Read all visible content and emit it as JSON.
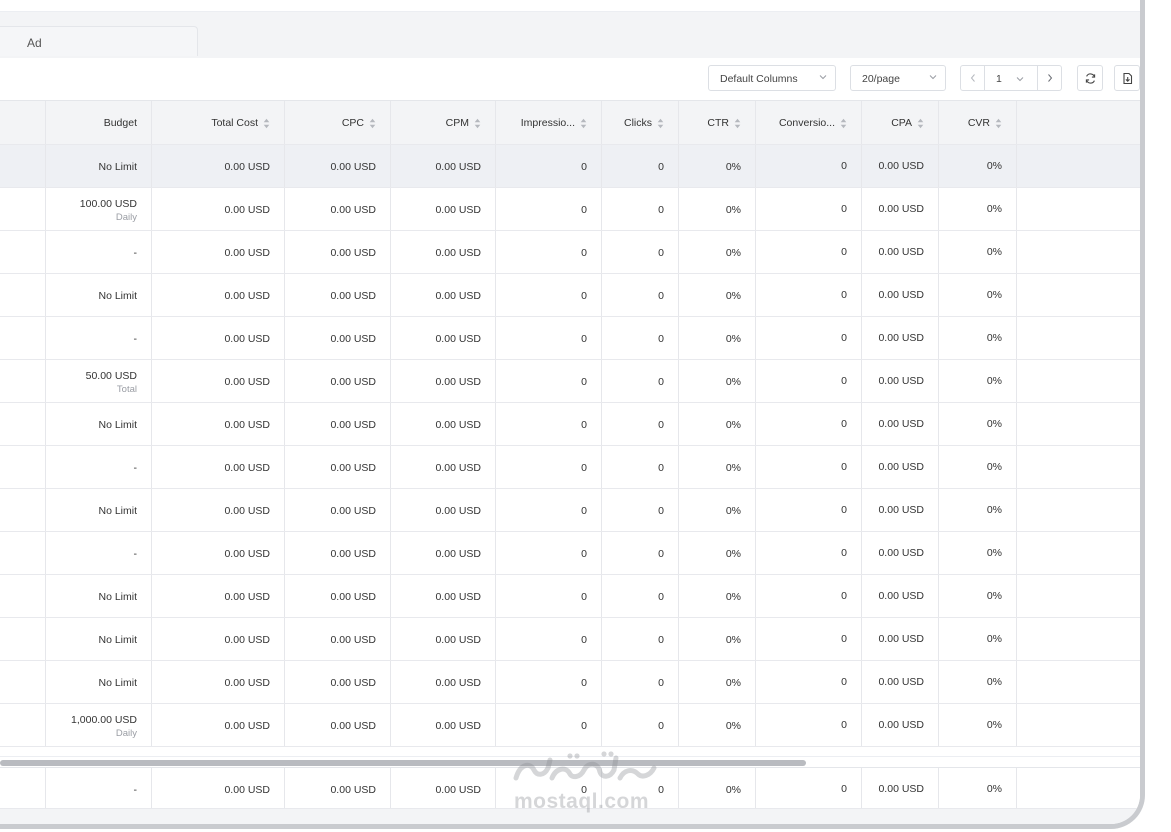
{
  "tabs": {
    "ad_label": "Ad"
  },
  "toolbar": {
    "columns_select": "Default Columns",
    "page_size_select": "20/page",
    "current_page": "1"
  },
  "table": {
    "headers": [
      "Budget",
      "Total Cost",
      "CPC",
      "CPM",
      "Impressio...",
      "Clicks",
      "CTR",
      "Conversio...",
      "CPA",
      "CVR"
    ],
    "rows": [
      {
        "budget": "No Limit",
        "budget_sub": "",
        "total_cost": "0.00 USD",
        "cpc": "0.00 USD",
        "cpm": "0.00 USD",
        "impressions": "0",
        "clicks": "0",
        "ctr": "0%",
        "conversions": "0",
        "cpa": "0.00 USD",
        "cvr": "0%"
      },
      {
        "budget": "100.00 USD",
        "budget_sub": "Daily",
        "total_cost": "0.00 USD",
        "cpc": "0.00 USD",
        "cpm": "0.00 USD",
        "impressions": "0",
        "clicks": "0",
        "ctr": "0%",
        "conversions": "0",
        "cpa": "0.00 USD",
        "cvr": "0%"
      },
      {
        "budget": "-",
        "budget_sub": "",
        "total_cost": "0.00 USD",
        "cpc": "0.00 USD",
        "cpm": "0.00 USD",
        "impressions": "0",
        "clicks": "0",
        "ctr": "0%",
        "conversions": "0",
        "cpa": "0.00 USD",
        "cvr": "0%"
      },
      {
        "budget": "No Limit",
        "budget_sub": "",
        "total_cost": "0.00 USD",
        "cpc": "0.00 USD",
        "cpm": "0.00 USD",
        "impressions": "0",
        "clicks": "0",
        "ctr": "0%",
        "conversions": "0",
        "cpa": "0.00 USD",
        "cvr": "0%"
      },
      {
        "budget": "-",
        "budget_sub": "",
        "total_cost": "0.00 USD",
        "cpc": "0.00 USD",
        "cpm": "0.00 USD",
        "impressions": "0",
        "clicks": "0",
        "ctr": "0%",
        "conversions": "0",
        "cpa": "0.00 USD",
        "cvr": "0%"
      },
      {
        "budget": "50.00 USD",
        "budget_sub": "Total",
        "total_cost": "0.00 USD",
        "cpc": "0.00 USD",
        "cpm": "0.00 USD",
        "impressions": "0",
        "clicks": "0",
        "ctr": "0%",
        "conversions": "0",
        "cpa": "0.00 USD",
        "cvr": "0%"
      },
      {
        "budget": "No Limit",
        "budget_sub": "",
        "total_cost": "0.00 USD",
        "cpc": "0.00 USD",
        "cpm": "0.00 USD",
        "impressions": "0",
        "clicks": "0",
        "ctr": "0%",
        "conversions": "0",
        "cpa": "0.00 USD",
        "cvr": "0%"
      },
      {
        "budget": "-",
        "budget_sub": "",
        "total_cost": "0.00 USD",
        "cpc": "0.00 USD",
        "cpm": "0.00 USD",
        "impressions": "0",
        "clicks": "0",
        "ctr": "0%",
        "conversions": "0",
        "cpa": "0.00 USD",
        "cvr": "0%"
      },
      {
        "budget": "No Limit",
        "budget_sub": "",
        "total_cost": "0.00 USD",
        "cpc": "0.00 USD",
        "cpm": "0.00 USD",
        "impressions": "0",
        "clicks": "0",
        "ctr": "0%",
        "conversions": "0",
        "cpa": "0.00 USD",
        "cvr": "0%"
      },
      {
        "budget": "-",
        "budget_sub": "",
        "total_cost": "0.00 USD",
        "cpc": "0.00 USD",
        "cpm": "0.00 USD",
        "impressions": "0",
        "clicks": "0",
        "ctr": "0%",
        "conversions": "0",
        "cpa": "0.00 USD",
        "cvr": "0%"
      },
      {
        "budget": "No Limit",
        "budget_sub": "",
        "total_cost": "0.00 USD",
        "cpc": "0.00 USD",
        "cpm": "0.00 USD",
        "impressions": "0",
        "clicks": "0",
        "ctr": "0%",
        "conversions": "0",
        "cpa": "0.00 USD",
        "cvr": "0%"
      },
      {
        "budget": "No Limit",
        "budget_sub": "",
        "total_cost": "0.00 USD",
        "cpc": "0.00 USD",
        "cpm": "0.00 USD",
        "impressions": "0",
        "clicks": "0",
        "ctr": "0%",
        "conversions": "0",
        "cpa": "0.00 USD",
        "cvr": "0%"
      },
      {
        "budget": "No Limit",
        "budget_sub": "",
        "total_cost": "0.00 USD",
        "cpc": "0.00 USD",
        "cpm": "0.00 USD",
        "impressions": "0",
        "clicks": "0",
        "ctr": "0%",
        "conversions": "0",
        "cpa": "0.00 USD",
        "cvr": "0%"
      },
      {
        "budget": "1,000.00 USD",
        "budget_sub": "Daily",
        "total_cost": "0.00 USD",
        "cpc": "0.00 USD",
        "cpm": "0.00 USD",
        "impressions": "0",
        "clicks": "0",
        "ctr": "0%",
        "conversions": "0",
        "cpa": "0.00 USD",
        "cvr": "0%"
      }
    ],
    "footer_row": {
      "budget": "-",
      "total_cost": "0.00 USD",
      "cpc": "0.00 USD",
      "cpm": "0.00 USD",
      "impressions": "0",
      "clicks": "0",
      "ctr": "0%",
      "conversions": "0",
      "cpa": "0.00 USD",
      "cvr": "0%"
    }
  },
  "watermark": {
    "text": "mostaql.com"
  },
  "icons": {
    "refresh": "refresh-icon",
    "export": "export-icon",
    "sort": "sort-icon",
    "chevron": "chevron-down-icon"
  },
  "colors": {
    "header_bg": "#f3f4f6",
    "highlight_row": "#eef0f4",
    "border": "#e6e7eb"
  }
}
